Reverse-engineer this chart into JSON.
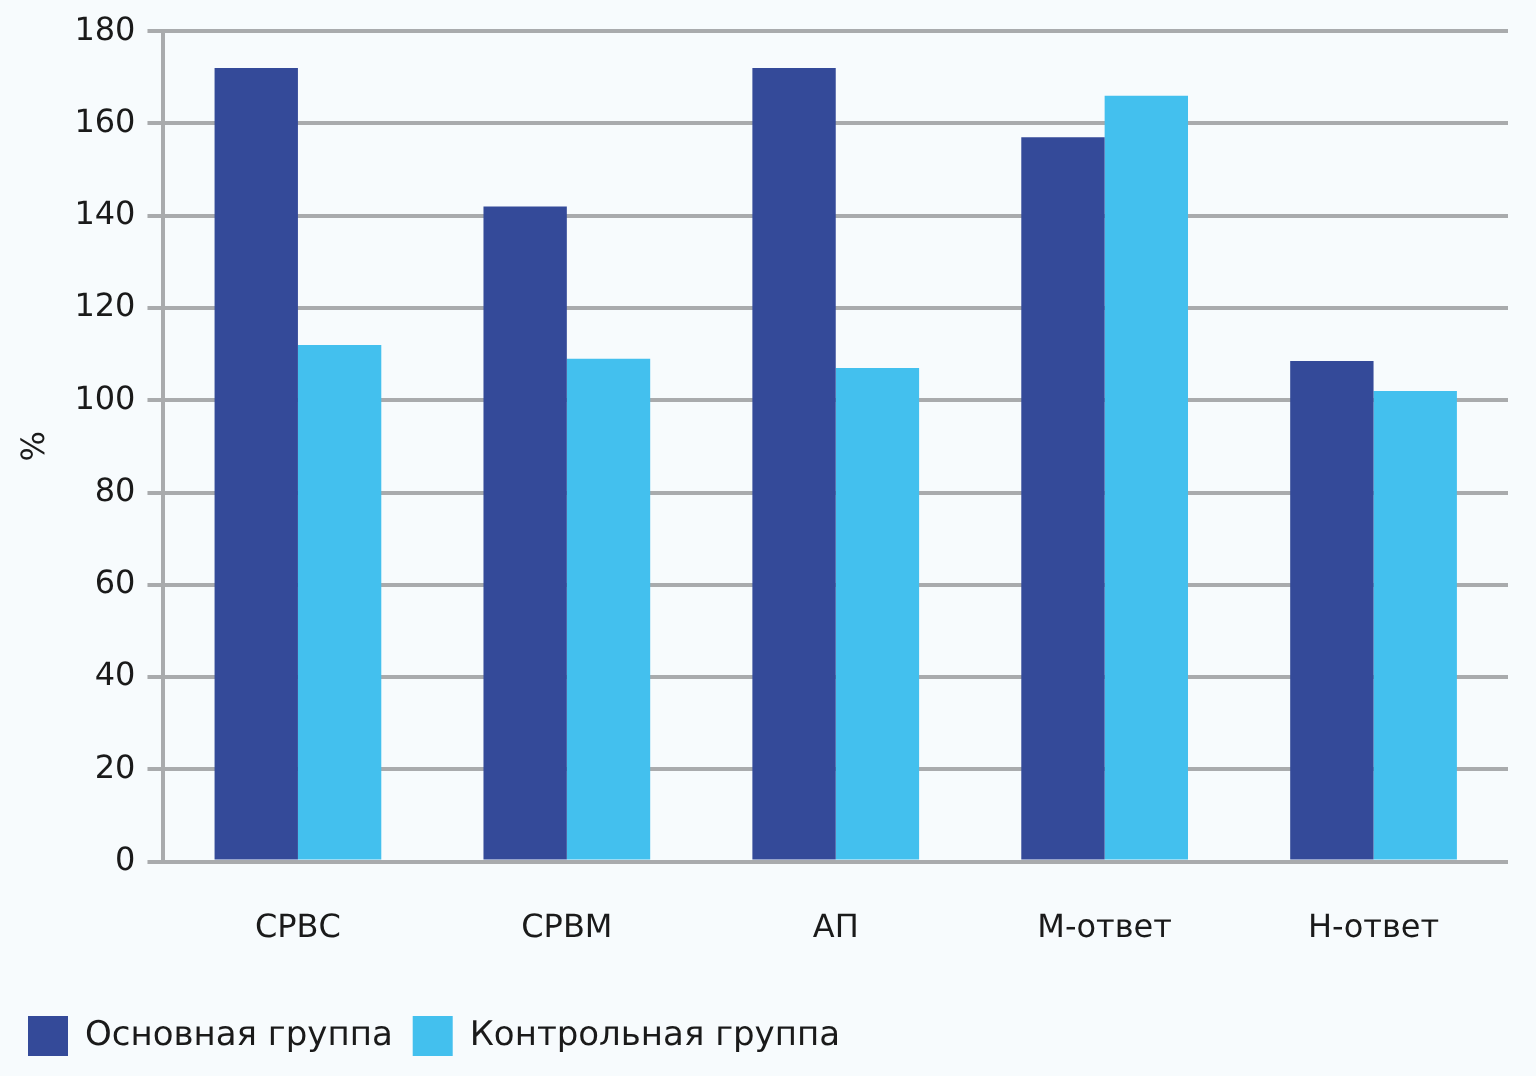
{
  "chart_data": {
    "type": "bar",
    "ylabel": "%",
    "categories": [
      "СРВС",
      "СРВМ",
      "АП",
      "М-ответ",
      "Н-ответ"
    ],
    "series": [
      {
        "name": "Основная группа",
        "color": "#344a99",
        "values": [
          172,
          142,
          172,
          157,
          108.5
        ]
      },
      {
        "name": "Контрольная группа",
        "color": "#43c0ee",
        "values": [
          112,
          109,
          107,
          166,
          102
        ]
      }
    ],
    "ylim": [
      0,
      180
    ],
    "yticks": [
      0,
      20,
      40,
      60,
      80,
      100,
      120,
      140,
      160,
      180
    ],
    "grid": "y",
    "legend": "bottom"
  }
}
